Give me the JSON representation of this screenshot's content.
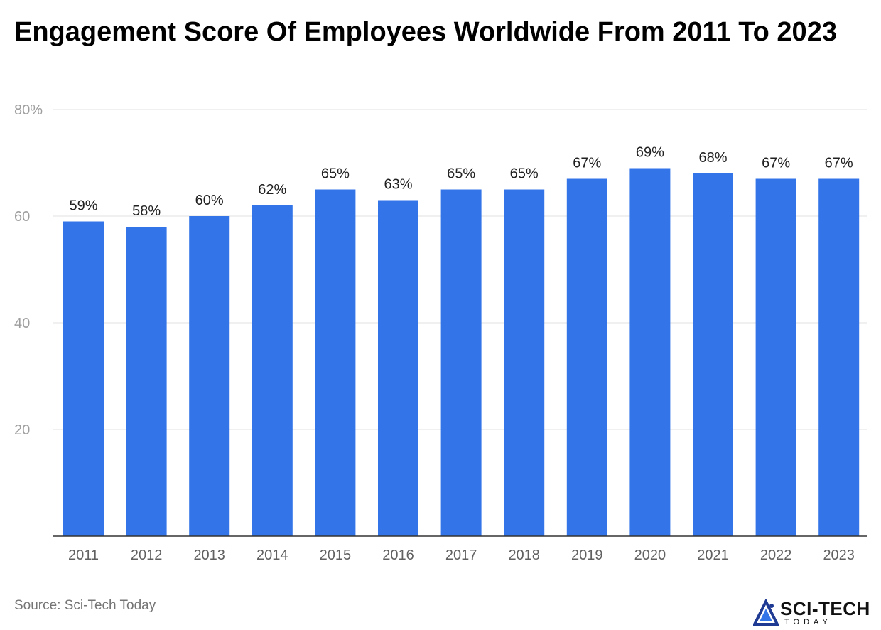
{
  "title": "Engagement Score Of Employees Worldwide From 2011 To 2023",
  "source": "Source: Sci-Tech Today",
  "logo": {
    "name": "SCI-TECH",
    "tagline": "TODAY",
    "icon": "sci-tech-logo-icon"
  },
  "colors": {
    "bar": "#3374e8",
    "grid": "#e0e0e0",
    "axis": "#333333",
    "tick": "#9e9e9e",
    "label": "#212121"
  },
  "chart_data": {
    "type": "bar",
    "categories": [
      "2011",
      "2012",
      "2013",
      "2014",
      "2015",
      "2016",
      "2017",
      "2018",
      "2019",
      "2020",
      "2021",
      "2022",
      "2023"
    ],
    "values": [
      59,
      58,
      60,
      62,
      65,
      63,
      65,
      65,
      67,
      69,
      68,
      67,
      67
    ],
    "data_labels": [
      "59%",
      "58%",
      "60%",
      "62%",
      "65%",
      "63%",
      "65%",
      "65%",
      "67%",
      "69%",
      "68%",
      "67%",
      "67%"
    ],
    "yticks": [
      20,
      40,
      60,
      80
    ],
    "ytick_labels": [
      "20",
      "40",
      "60",
      "80%"
    ],
    "ylim": [
      0,
      80
    ],
    "grid": true,
    "legend": "none"
  }
}
